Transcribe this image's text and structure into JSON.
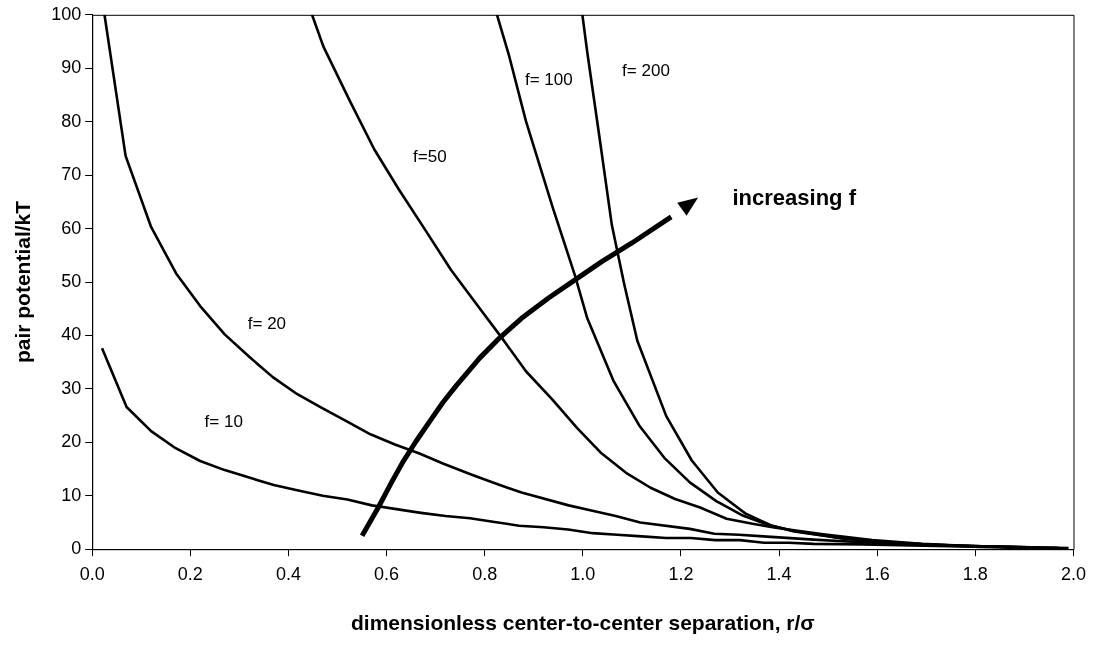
{
  "chart_data": {
    "type": "line",
    "xlabel": "dimensionless center-to-center separation, r/σ",
    "ylabel": "pair potential/kT",
    "xlim": [
      0,
      2
    ],
    "xticks": [
      {
        "value": 0,
        "label": "0.0"
      },
      {
        "value": 0.2,
        "label": "0.2"
      },
      {
        "value": 0.4,
        "label": "0.4"
      },
      {
        "value": 0.6,
        "label": "0.6"
      },
      {
        "value": 0.8,
        "label": "0.8"
      },
      {
        "value": 1,
        "label": "1.0"
      },
      {
        "value": 1.2,
        "label": "1.2"
      },
      {
        "value": 1.4,
        "label": "1.4"
      },
      {
        "value": 1.6,
        "label": "1.6"
      },
      {
        "value": 1.8,
        "label": "1.8"
      },
      {
        "value": 2,
        "label": "2.0"
      }
    ],
    "ylim": [
      0,
      100
    ],
    "yticks": [
      0,
      10,
      20,
      30,
      40,
      50,
      60,
      70,
      80,
      90,
      100
    ],
    "grid": false,
    "legend": false,
    "marker": "none",
    "line_style": "solid",
    "series": [
      {
        "name": "f= 10",
        "color": "#000000",
        "x": [
          0.02,
          0.07,
          0.12,
          0.17,
          0.22,
          0.27,
          0.32,
          0.37,
          0.42,
          0.47,
          0.52,
          0.57,
          0.62,
          0.67,
          0.72,
          0.77,
          0.82,
          0.87,
          0.92,
          0.97,
          1.02,
          1.07,
          1.12,
          1.17,
          1.22,
          1.27,
          1.32,
          1.37,
          1.42,
          1.47,
          1.57,
          1.67,
          1.77,
          1.87,
          1.97
        ],
        "values": [
          37.6,
          26.6,
          22.1,
          18.9,
          16.5,
          14.8,
          13.4,
          12,
          11,
          10,
          9.3,
          8.2,
          7.5,
          6.8,
          6.2,
          5.8,
          5.1,
          4.4,
          4.1,
          3.7,
          3,
          2.7,
          2.4,
          2.1,
          2.1,
          1.7,
          1.7,
          1.2,
          1.2,
          1,
          0.9,
          0.7,
          0.5,
          0.3,
          0.2
        ]
      },
      {
        "name": "f= 20",
        "color": "#000000",
        "x": [
          0.025,
          0.068,
          0.12,
          0.171,
          0.22,
          0.27,
          0.32,
          0.368,
          0.418,
          0.467,
          0.517,
          0.567,
          0.617,
          0.667,
          0.716,
          0.775,
          0.825,
          0.875,
          0.971,
          1.067,
          1.117,
          1.218,
          1.268,
          1.318,
          1.368,
          1.47,
          1.57,
          1.67,
          1.77,
          1.87,
          1.97
        ],
        "values": [
          100,
          73.6,
          60.3,
          51.6,
          45.5,
          40.2,
          36,
          32.2,
          29,
          26.5,
          24,
          21.5,
          19.6,
          17.9,
          16,
          13.9,
          12.2,
          10.6,
          8.2,
          6.2,
          5,
          3.8,
          2.9,
          2.7,
          2.4,
          1.8,
          1.3,
          0.9,
          0.6,
          0.4,
          0.2
        ]
      },
      {
        "name": "f=50",
        "color": "#000000",
        "x": [
          0.448,
          0.471,
          0.525,
          0.575,
          0.625,
          0.679,
          0.731,
          0.783,
          0.836,
          0.884,
          0.938,
          0.988,
          1.036,
          1.088,
          1.138,
          1.188,
          1.239,
          1.293,
          1.343,
          1.393,
          1.49,
          1.59,
          1.69,
          1.79,
          1.89,
          1.99
        ],
        "values": [
          100,
          94.1,
          83.9,
          74.8,
          67.3,
          59.7,
          52.3,
          45.9,
          39.4,
          33.3,
          28,
          22.7,
          18.1,
          14.3,
          11.5,
          9.4,
          7.8,
          5.7,
          4.8,
          4,
          2.8,
          1.7,
          1,
          0.6,
          0.4,
          0.2
        ]
      },
      {
        "name": "f= 100",
        "color": "#000000",
        "x": [
          0.825,
          0.85,
          0.884,
          0.938,
          0.984,
          1.009,
          1.063,
          1.116,
          1.166,
          1.218,
          1.272,
          1.326,
          1.376,
          1.431,
          1.53,
          1.63,
          1.73,
          1.83,
          1.93
        ],
        "values": [
          100,
          92.2,
          80.1,
          64.1,
          51.2,
          43.2,
          31.4,
          23,
          17.1,
          12.5,
          9,
          6.3,
          4.6,
          3.3,
          2,
          1.2,
          0.8,
          0.5,
          0.3
        ]
      },
      {
        "name": "f= 200",
        "color": "#000000",
        "x": [
          0.999,
          1.009,
          1.034,
          1.059,
          1.084,
          1.111,
          1.17,
          1.222,
          1.275,
          1.331,
          1.385,
          1.431,
          1.53,
          1.63,
          1.73,
          1.83,
          1.93
        ],
        "values": [
          100,
          93,
          77,
          60.7,
          49.7,
          39,
          24.9,
          16.6,
          10.6,
          6.7,
          4.4,
          3.4,
          2,
          1.2,
          0.8,
          0.5,
          0.3
        ]
      }
    ],
    "annotations": [
      "increasing f"
    ]
  }
}
